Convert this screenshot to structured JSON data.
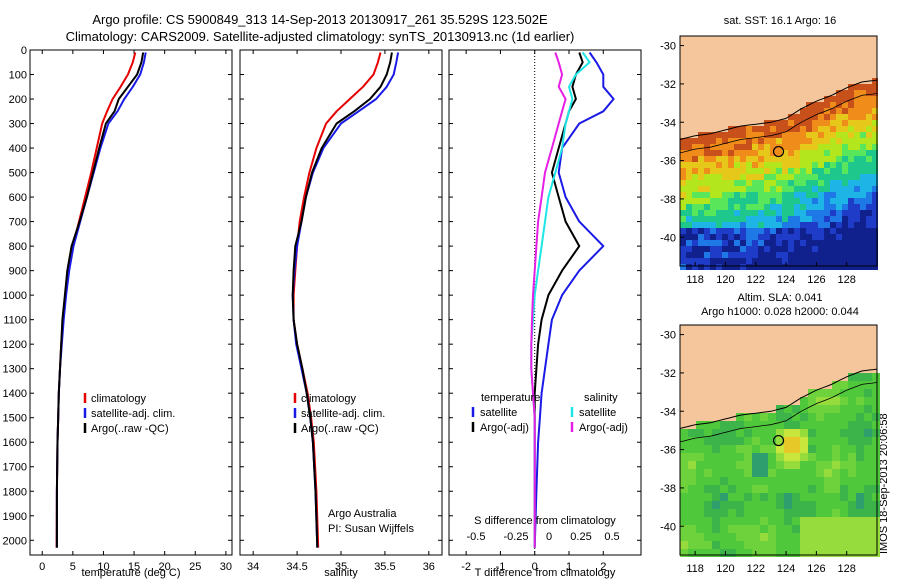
{
  "title_line1": "Argo profile: CS 5900849_313 14-Sep-2013 20130917_261 35.529S 123.502E",
  "title_line2": "Climatology: CARS2009. Satellite-adjusted climatology: synTS_20130913.nc (1d earlier)",
  "timestamp": "IMOS 18-Sep-2013 20:06:58",
  "map_top_title": "sat. SST: 16.1 Argo: 16",
  "map_bottom_title_1": "Altim. SLA: 0.041",
  "map_bottom_title_2": "Argo h1000: 0.028 h2000: 0.044",
  "credits": [
    "Argo Australia",
    "PI: Susan Wijffels"
  ],
  "colors": {
    "climatology": "#e60000",
    "satellite": "#1a1ae6",
    "argo": "#000000",
    "satellite_s": "#1ee6e6",
    "argo_s": "#e61ee6",
    "land": "#f5c69c"
  },
  "chart_data": [
    {
      "type": "line",
      "xlabel": "temperature (deg C)",
      "ylabel": "",
      "xlim": [
        -2,
        31
      ],
      "ylim": [
        2060,
        0
      ],
      "xticks": [
        0,
        5,
        10,
        15,
        20,
        25,
        30
      ],
      "yticks": [
        0,
        100,
        200,
        300,
        400,
        500,
        600,
        700,
        800,
        900,
        1000,
        1100,
        1200,
        1300,
        1400,
        1500,
        1600,
        1700,
        1800,
        1900,
        2000
      ],
      "legend": [
        "climatology",
        "satellite-adj. clim.",
        "Argo(..raw -QC)"
      ],
      "series": [
        {
          "name": "climatology",
          "x": [
            15.2,
            14.8,
            14.0,
            12.8,
            11.5,
            10.6,
            9.8,
            8.9,
            8.0,
            7.0,
            6.0,
            5.0,
            4.3,
            3.8,
            3.4,
            3.1,
            2.9,
            2.7,
            2.6,
            2.5,
            2.4,
            2.35
          ],
          "y": [
            10,
            50,
            100,
            150,
            200,
            250,
            300,
            400,
            500,
            600,
            700,
            800,
            900,
            1000,
            1100,
            1200,
            1300,
            1400,
            1500,
            1600,
            1800,
            2030
          ]
        },
        {
          "name": "satellite-adj. clim.",
          "x": [
            16.9,
            16.6,
            16.0,
            14.8,
            13.4,
            12.3,
            10.8,
            9.5,
            8.4,
            7.3,
            6.2,
            5.1,
            4.4,
            3.9,
            3.5,
            3.2,
            2.9,
            2.7,
            2.6,
            2.5,
            2.4,
            2.4
          ],
          "y": [
            10,
            50,
            100,
            150,
            200,
            250,
            300,
            400,
            500,
            600,
            700,
            800,
            900,
            1000,
            1100,
            1200,
            1300,
            1400,
            1500,
            1600,
            1800,
            2030
          ]
        },
        {
          "name": "Argo(..raw -QC)",
          "x": [
            16.5,
            16.2,
            15.5,
            14.0,
            12.5,
            11.8,
            10.4,
            9.3,
            8.3,
            7.3,
            6.1,
            4.8,
            4.1,
            3.7,
            3.3,
            3.1,
            2.9,
            2.7,
            2.6,
            2.5,
            2.4,
            2.4
          ],
          "y": [
            10,
            50,
            100,
            150,
            200,
            250,
            300,
            400,
            500,
            600,
            700,
            800,
            900,
            1000,
            1100,
            1200,
            1300,
            1400,
            1500,
            1600,
            1800,
            2030
          ]
        }
      ]
    },
    {
      "type": "line",
      "xlabel": "salinity",
      "ylabel": "",
      "xlim": [
        33.85,
        36.15
      ],
      "ylim": [
        2060,
        0
      ],
      "xticks": [
        34,
        34.5,
        35,
        35.5,
        36
      ],
      "legend": [
        "climatology",
        "satellite-adj. clim.",
        "Argo(..raw -QC)"
      ],
      "series": [
        {
          "name": "climatology",
          "x": [
            35.45,
            35.42,
            35.37,
            35.25,
            35.1,
            34.95,
            34.83,
            34.72,
            34.64,
            34.58,
            34.53,
            34.5,
            34.48,
            34.46,
            34.46,
            34.5,
            34.56,
            34.62,
            34.66,
            34.69,
            34.72,
            34.74
          ],
          "y": [
            10,
            50,
            100,
            150,
            200,
            250,
            300,
            400,
            500,
            600,
            700,
            800,
            900,
            1000,
            1100,
            1200,
            1300,
            1400,
            1500,
            1600,
            1800,
            2030
          ]
        },
        {
          "name": "satellite-adj. clim.",
          "x": [
            35.65,
            35.63,
            35.6,
            35.52,
            35.4,
            35.2,
            35.0,
            34.8,
            34.68,
            34.6,
            34.55,
            34.5,
            34.47,
            34.45,
            34.46,
            34.49,
            34.55,
            34.61,
            34.65,
            34.68,
            34.71,
            34.73
          ],
          "y": [
            10,
            50,
            100,
            150,
            200,
            250,
            300,
            400,
            500,
            600,
            700,
            800,
            900,
            1000,
            1100,
            1200,
            1300,
            1400,
            1500,
            1600,
            1800,
            2030
          ]
        },
        {
          "name": "Argo(..raw -QC)",
          "x": [
            35.58,
            35.56,
            35.52,
            35.45,
            35.33,
            35.15,
            34.95,
            34.78,
            34.67,
            34.6,
            34.55,
            34.48,
            34.46,
            34.45,
            34.46,
            34.5,
            34.56,
            34.61,
            34.65,
            34.68,
            34.71,
            34.73
          ],
          "y": [
            10,
            50,
            100,
            150,
            200,
            250,
            300,
            400,
            500,
            600,
            700,
            800,
            900,
            1000,
            1100,
            1200,
            1300,
            1400,
            1500,
            1600,
            1800,
            2030
          ]
        }
      ]
    },
    {
      "type": "line",
      "xlabel": "T difference from climatology",
      "ylabel": "",
      "xlim": [
        -2.5,
        3.1
      ],
      "ylim": [
        2060,
        0
      ],
      "xticks": [
        -2,
        -1,
        0,
        1,
        2
      ],
      "secondary_xlabel": "S difference from climatology",
      "secondary_xticks": [
        "-0.5",
        "-0.25",
        "0",
        "0.25",
        "0.5"
      ],
      "legend_titles": [
        "temperature",
        "salinity"
      ],
      "legend": [
        "satellite",
        "Argo(-adj)",
        "satellite",
        "Argo(-adj)"
      ],
      "zero_line": true,
      "series": [
        {
          "name": "satellite",
          "quantity": "temperature",
          "x": [
            1.6,
            1.8,
            2.0,
            2.0,
            2.3,
            2.0,
            1.3,
            0.8,
            0.7,
            0.9,
            1.3,
            2.0,
            1.3,
            0.8,
            0.5,
            0.4,
            0.3,
            0.2,
            0.15,
            0.1,
            0.05,
            0.0
          ],
          "y": [
            10,
            50,
            100,
            150,
            200,
            250,
            300,
            400,
            500,
            600,
            700,
            800,
            900,
            1000,
            1100,
            1200,
            1300,
            1400,
            1500,
            1600,
            1800,
            2030
          ]
        },
        {
          "name": "Argo(-adj)",
          "quantity": "temperature",
          "x": [
            1.3,
            1.4,
            1.2,
            1.1,
            1.2,
            1.0,
            0.9,
            0.7,
            0.5,
            0.7,
            0.9,
            1.3,
            0.8,
            0.4,
            0.2,
            0.1,
            0.05,
            0.0,
            0.0,
            0.0,
            0.0,
            0.0
          ],
          "y": [
            10,
            50,
            100,
            150,
            200,
            250,
            300,
            400,
            500,
            600,
            700,
            800,
            900,
            1000,
            1100,
            1200,
            1300,
            1400,
            1500,
            1600,
            1800,
            2030
          ]
        },
        {
          "name": "satellite",
          "quantity": "salinity",
          "x": [
            1.4,
            1.6,
            1.2,
            1.0,
            1.1,
            1.0,
            0.9,
            0.8,
            0.6,
            0.4,
            0.3,
            0.2,
            0.1,
            0.0,
            -0.05,
            -0.1,
            -0.1,
            -0.05,
            0.0,
            0.0,
            0.0,
            0.0
          ],
          "y": [
            10,
            50,
            100,
            150,
            200,
            250,
            300,
            400,
            500,
            600,
            700,
            800,
            900,
            1000,
            1100,
            1200,
            1300,
            1400,
            1500,
            1600,
            1800,
            2030
          ]
        },
        {
          "name": "Argo(-adj)",
          "quantity": "salinity",
          "x": [
            0.6,
            0.7,
            0.8,
            0.7,
            0.9,
            0.8,
            0.7,
            0.5,
            0.3,
            0.2,
            0.1,
            0.05,
            0.0,
            -0.05,
            -0.08,
            -0.1,
            -0.1,
            -0.05,
            0.0,
            0.0,
            0.0,
            0.0
          ],
          "y": [
            10,
            50,
            100,
            150,
            200,
            250,
            300,
            400,
            500,
            600,
            700,
            800,
            900,
            1000,
            1100,
            1200,
            1300,
            1400,
            1500,
            1600,
            1800,
            2030
          ]
        }
      ]
    },
    {
      "type": "heatmap",
      "title": "sat. SST: 16.1 Argo: 16",
      "xlim": [
        117,
        130
      ],
      "ylim": [
        -41.5,
        -29.5
      ],
      "xticks": [
        118,
        120,
        122,
        124,
        126,
        128
      ],
      "yticks": [
        -30,
        -32,
        -34,
        -36,
        -38,
        -40
      ],
      "argo_position": [
        123.502,
        -35.529
      ]
    },
    {
      "type": "heatmap",
      "title": "Altim. SLA: 0.041 Argo h1000: 0.028 h2000: 0.044",
      "xlim": [
        117,
        130
      ],
      "ylim": [
        -41.5,
        -29.5
      ],
      "xticks": [
        118,
        120,
        122,
        124,
        126,
        128
      ],
      "yticks": [
        -30,
        -32,
        -34,
        -36,
        -38,
        -40
      ],
      "argo_position": [
        123.502,
        -35.529
      ]
    }
  ]
}
